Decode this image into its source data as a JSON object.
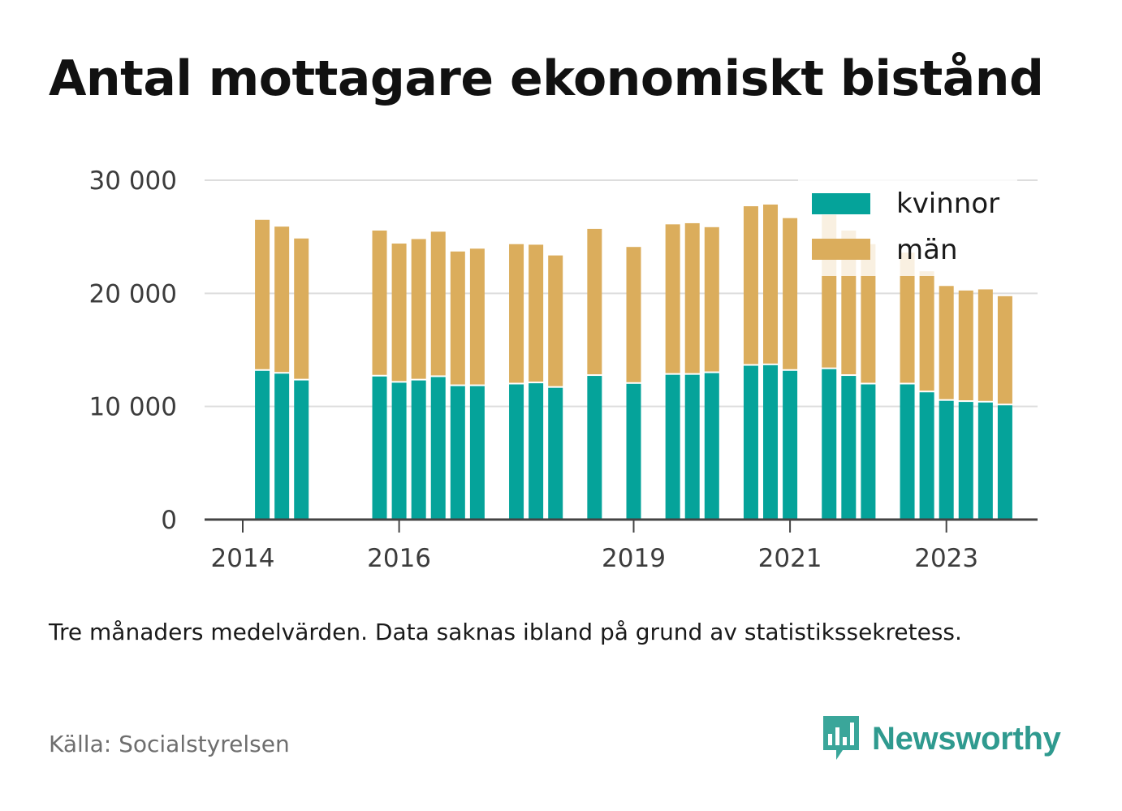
{
  "title": "Antal mottagare ekonomiskt bistånd",
  "note": "Tre månaders medelvärden. Data saknas ibland på grund av statistikssekretess.",
  "source": "Källa: Socialstyrelsen",
  "brand": {
    "name": "Newsworthy",
    "icon": "newsworthy-logo-icon",
    "color": "#2f9a8f"
  },
  "chart_data": {
    "type": "bar",
    "stacked": true,
    "ylim": [
      0,
      30000
    ],
    "yticks": [
      {
        "value": 0,
        "label": "0"
      },
      {
        "value": 10000,
        "label": "10 000"
      },
      {
        "value": 20000,
        "label": "20 000"
      },
      {
        "value": 30000,
        "label": "30 000"
      }
    ],
    "xticks": [
      {
        "year": 2014,
        "label": "2014"
      },
      {
        "year": 2016,
        "label": "2016"
      },
      {
        "year": 2019,
        "label": "2019"
      },
      {
        "year": 2021,
        "label": "2021"
      },
      {
        "year": 2023,
        "label": "2023"
      }
    ],
    "grid": true,
    "legend_position": "top-right",
    "colors": {
      "kvinnor": "#05a39a",
      "man": "#dbad5c",
      "grid": "#dddddd",
      "axis": "#444444"
    },
    "series": [
      {
        "name": "kvinnor",
        "key": "kvinnor"
      },
      {
        "name": "män",
        "key": "man"
      }
    ],
    "periods": [
      {
        "date": "2014-04",
        "kvinnor": 13150,
        "man": 13350
      },
      {
        "date": "2014-07",
        "kvinnor": 12900,
        "man": 13000
      },
      {
        "date": "2014-10",
        "kvinnor": 12300,
        "man": 12550
      },
      {
        "date": "2015-10",
        "kvinnor": 12650,
        "man": 12900
      },
      {
        "date": "2016-01",
        "kvinnor": 12100,
        "man": 12300
      },
      {
        "date": "2016-04",
        "kvinnor": 12300,
        "man": 12500
      },
      {
        "date": "2016-07",
        "kvinnor": 12600,
        "man": 12850
      },
      {
        "date": "2016-10",
        "kvinnor": 11800,
        "man": 11900
      },
      {
        "date": "2017-01",
        "kvinnor": 11800,
        "man": 12150
      },
      {
        "date": "2017-07",
        "kvinnor": 11950,
        "man": 12400
      },
      {
        "date": "2017-10",
        "kvinnor": 12050,
        "man": 12250
      },
      {
        "date": "2018-01",
        "kvinnor": 11650,
        "man": 11700
      },
      {
        "date": "2018-07",
        "kvinnor": 12700,
        "man": 13000
      },
      {
        "date": "2019-01",
        "kvinnor": 12000,
        "man": 12100
      },
      {
        "date": "2019-07",
        "kvinnor": 12800,
        "man": 13300
      },
      {
        "date": "2019-10",
        "kvinnor": 12800,
        "man": 13400
      },
      {
        "date": "2020-01",
        "kvinnor": 12950,
        "man": 12900
      },
      {
        "date": "2020-07",
        "kvinnor": 13600,
        "man": 14100
      },
      {
        "date": "2020-10",
        "kvinnor": 13650,
        "man": 14200
      },
      {
        "date": "2021-01",
        "kvinnor": 13150,
        "man": 13500
      },
      {
        "date": "2021-07",
        "kvinnor": 13300,
        "man": 13650
      },
      {
        "date": "2021-10",
        "kvinnor": 12700,
        "man": 12850
      },
      {
        "date": "2022-01",
        "kvinnor": 11950,
        "man": 12400
      },
      {
        "date": "2022-07",
        "kvinnor": 11950,
        "man": 11650
      },
      {
        "date": "2022-10",
        "kvinnor": 11250,
        "man": 10700
      },
      {
        "date": "2023-01",
        "kvinnor": 10500,
        "man": 10150
      },
      {
        "date": "2023-04",
        "kvinnor": 10400,
        "man": 9850
      },
      {
        "date": "2023-07",
        "kvinnor": 10350,
        "man": 10000
      },
      {
        "date": "2023-10",
        "kvinnor": 10100,
        "man": 9650
      }
    ]
  }
}
